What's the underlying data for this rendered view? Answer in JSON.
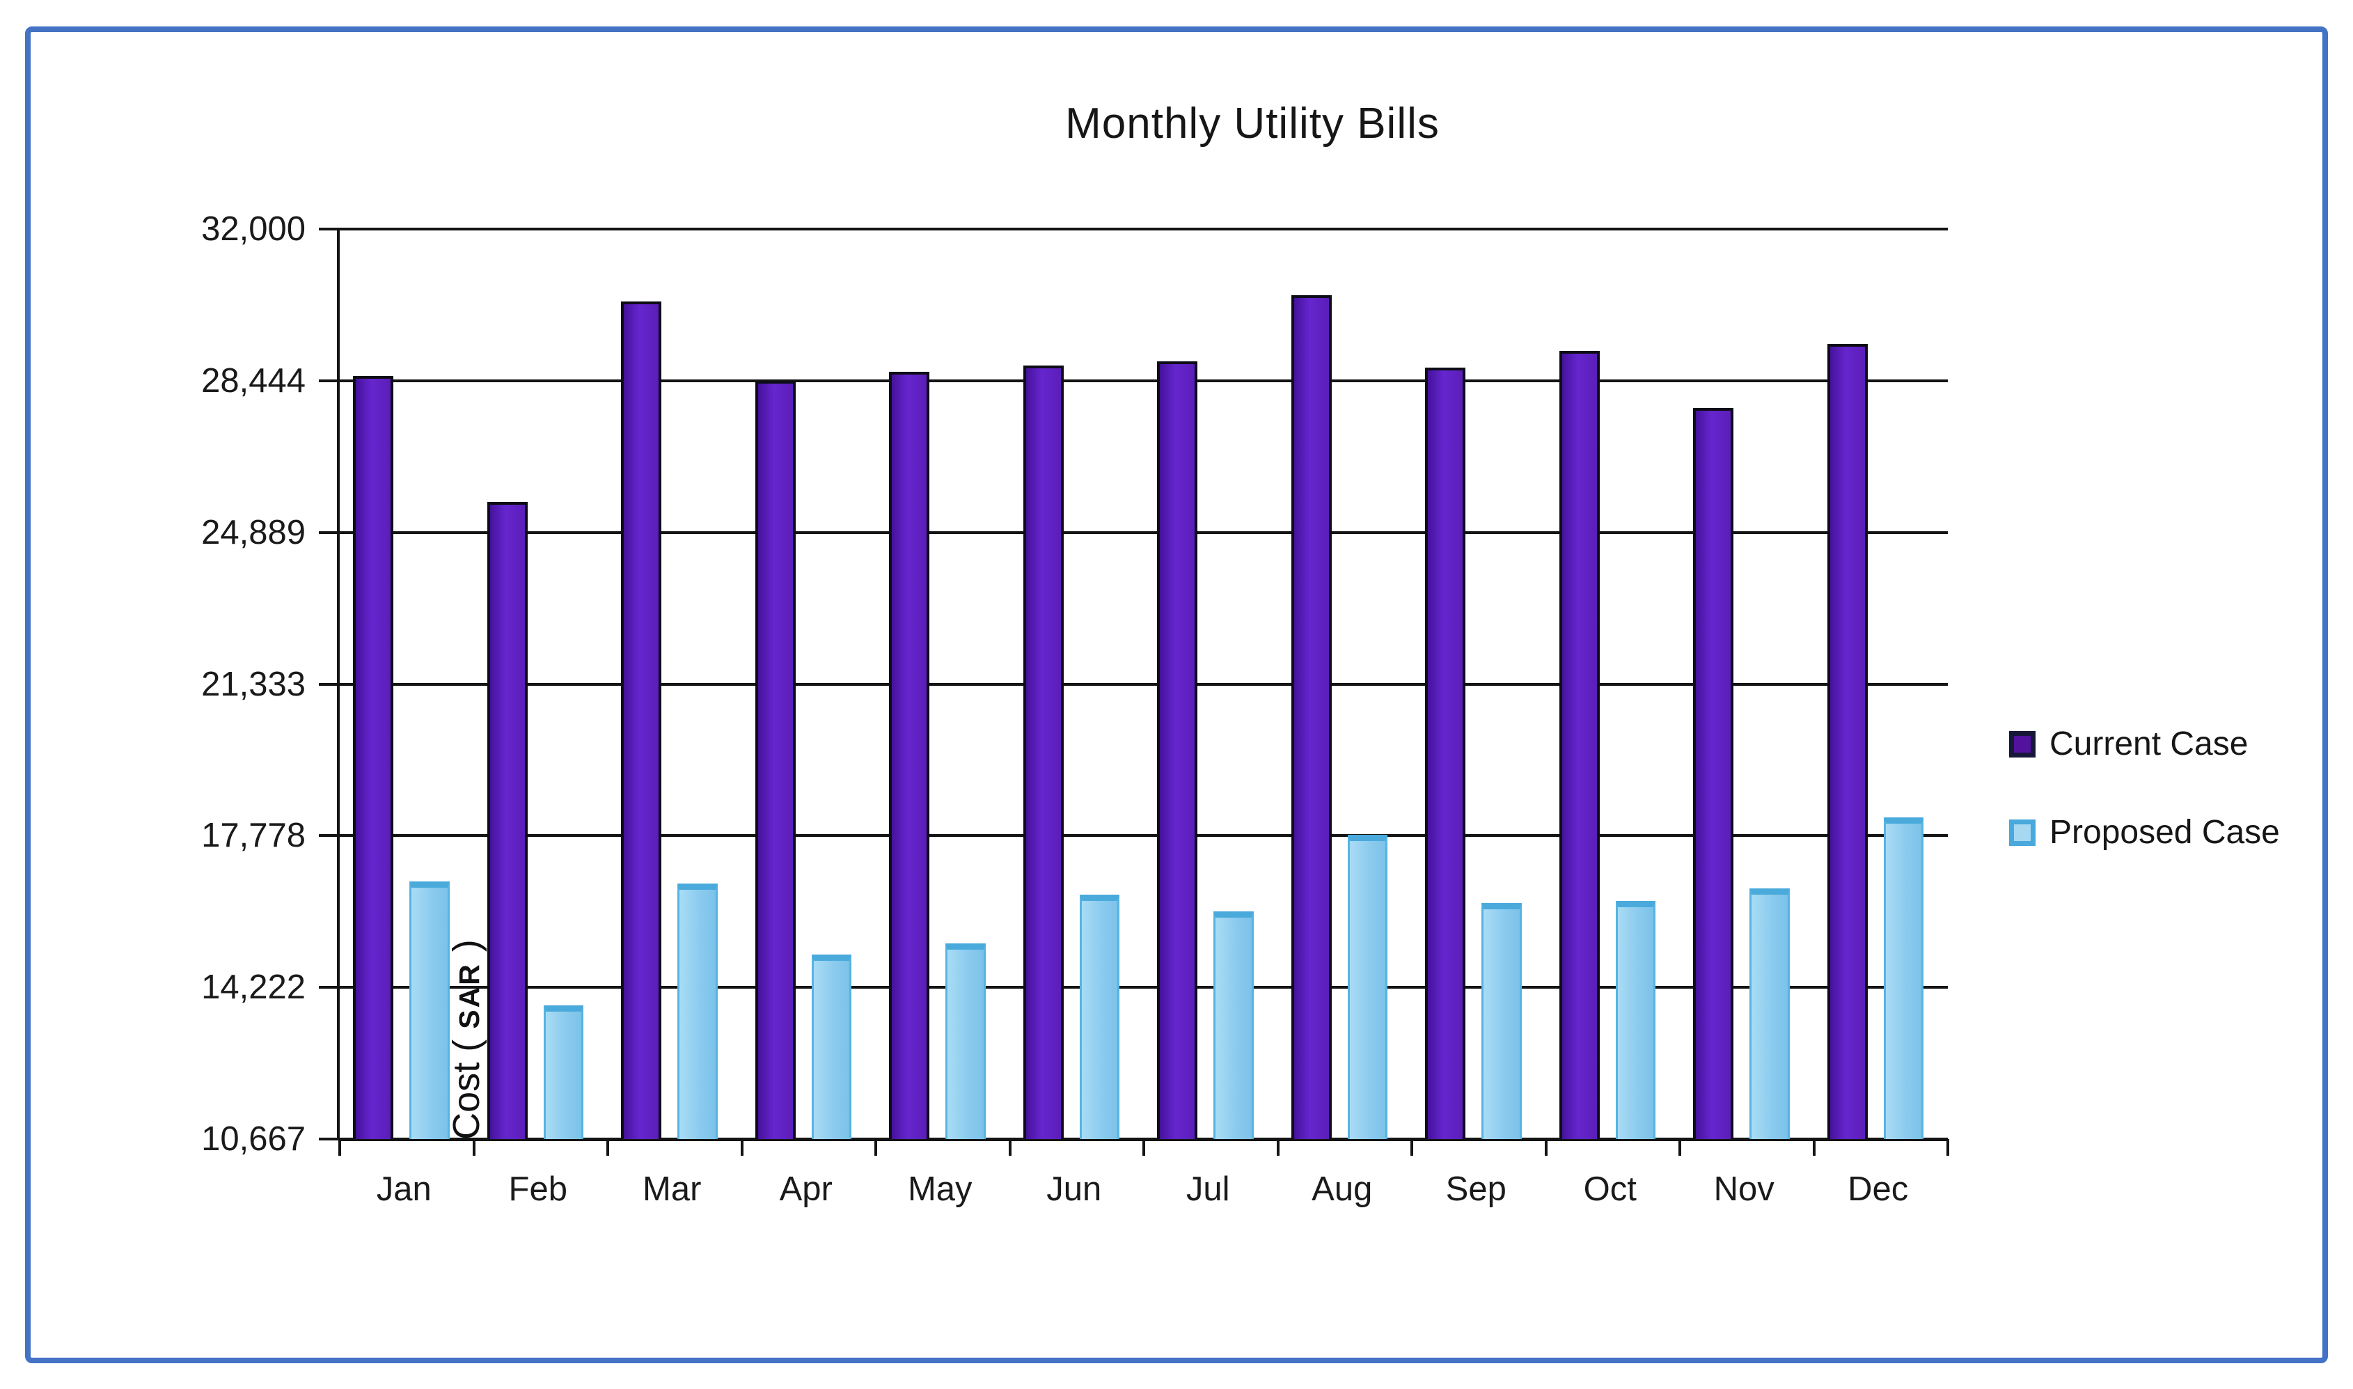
{
  "chart_data": {
    "type": "bar",
    "title": "Monthly Utility Bills",
    "y_axis_title": {
      "prefix": "Cost ( ",
      "unit": "SAR",
      "suffix": " )"
    },
    "categories": [
      "Jan",
      "Feb",
      "Mar",
      "Apr",
      "May",
      "Jun",
      "Jul",
      "Aug",
      "Sep",
      "Oct",
      "Nov",
      "Dec"
    ],
    "series": [
      {
        "name": "Current Case",
        "color": "#5B1EB8",
        "values": [
          28550,
          25600,
          30300,
          28450,
          28650,
          28800,
          28900,
          30450,
          28750,
          29150,
          27800,
          29300
        ]
      },
      {
        "name": "Proposed Case",
        "color": "#8CCBEE",
        "values": [
          16700,
          13800,
          16650,
          15000,
          15250,
          16400,
          16000,
          17800,
          16200,
          16250,
          16550,
          18200
        ]
      }
    ],
    "y_ticks": [
      {
        "label": "32,000",
        "value": 32000
      },
      {
        "label": "28,444",
        "value": 28444
      },
      {
        "label": "24,889",
        "value": 24889
      },
      {
        "label": "21,333",
        "value": 21333
      },
      {
        "label": "17,778",
        "value": 17778
      },
      {
        "label": "14,222",
        "value": 14222
      },
      {
        "label": "10,667",
        "value": 10667
      }
    ],
    "ylim": [
      10667,
      32000
    ],
    "grid": true,
    "legend_position": "right",
    "frame_color": "#4472C4"
  }
}
